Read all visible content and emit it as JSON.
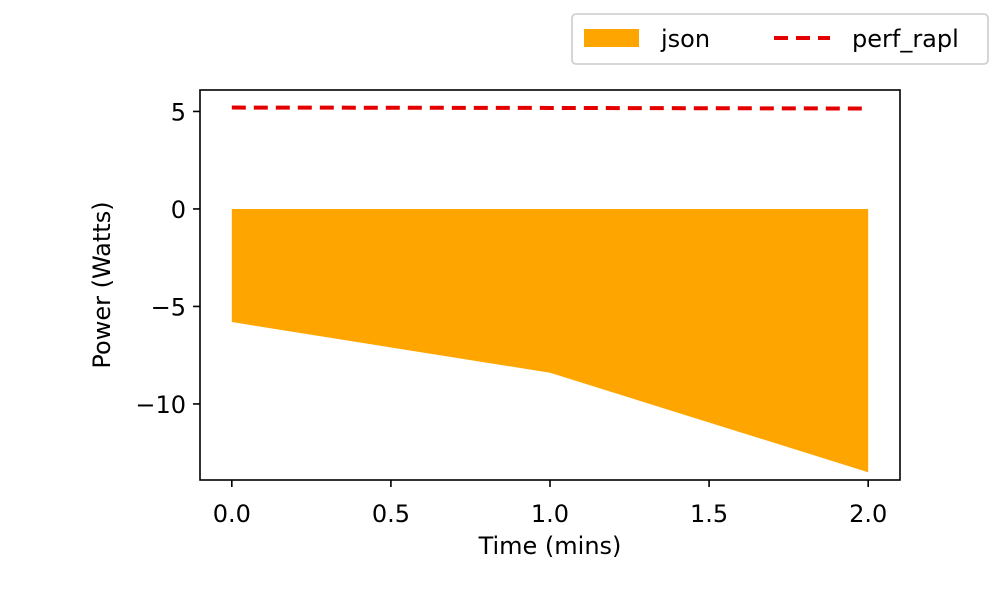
{
  "chart_data": {
    "type": "area",
    "title": "",
    "xlabel": "Time (mins)",
    "ylabel": "Power (Watts)",
    "xlim": [
      -0.1,
      2.1
    ],
    "ylim": [
      -13.9,
      6.1
    ],
    "grid": false,
    "legend_position": "top-right, above plot",
    "x_ticks": [
      0.0,
      0.5,
      1.0,
      1.5,
      2.0
    ],
    "x_tick_labels": [
      "0.0",
      "0.5",
      "1.0",
      "1.5",
      "2.0"
    ],
    "y_ticks": [
      5,
      0,
      -5,
      -10
    ],
    "y_tick_labels": [
      "5",
      "0",
      "−5",
      "−10"
    ],
    "series": [
      {
        "name": "json",
        "kind": "area",
        "color": "#ffa500",
        "x": [
          0,
          1,
          2
        ],
        "y": [
          -5.8,
          -8.4,
          -13.5
        ],
        "baseline": 0
      },
      {
        "name": "perf_rapl",
        "kind": "line",
        "style": "dashed",
        "color": "#e50000",
        "x": [
          0,
          1,
          2
        ],
        "y": [
          5.2,
          5.18,
          5.15
        ]
      }
    ]
  }
}
